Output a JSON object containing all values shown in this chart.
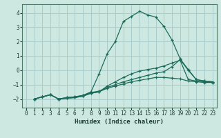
{
  "title": "",
  "xlabel": "Humidex (Indice chaleur)",
  "background_color": "#cce8e0",
  "grid_color": "#aacccc",
  "line_color": "#1a6b5a",
  "xlim": [
    -0.5,
    23.5
  ],
  "ylim": [
    -2.6,
    4.6
  ],
  "xticks": [
    0,
    1,
    2,
    3,
    4,
    5,
    6,
    7,
    8,
    9,
    10,
    11,
    12,
    13,
    14,
    15,
    16,
    17,
    18,
    19,
    20,
    21,
    22,
    23
  ],
  "yticks": [
    -2,
    -1,
    0,
    1,
    2,
    3,
    4
  ],
  "lines": [
    {
      "x": [
        1,
        2,
        3,
        4,
        5,
        6,
        7,
        8,
        9,
        10,
        11,
        12,
        13,
        14,
        15,
        16,
        17,
        18,
        19,
        20,
        21,
        22,
        23
      ],
      "y": [
        -2.0,
        -1.85,
        -1.7,
        -2.0,
        -1.9,
        -1.85,
        -1.75,
        -1.5,
        -0.25,
        1.15,
        2.0,
        3.4,
        3.75,
        4.1,
        3.85,
        3.7,
        3.05,
        2.1,
        0.8,
        0.05,
        -0.65,
        -0.75,
        -0.8
      ]
    },
    {
      "x": [
        1,
        2,
        3,
        4,
        5,
        6,
        7,
        8,
        9,
        10,
        11,
        12,
        13,
        14,
        15,
        16,
        17,
        18,
        19,
        20,
        21,
        22,
        23
      ],
      "y": [
        -2.0,
        -1.85,
        -1.7,
        -2.0,
        -1.9,
        -1.85,
        -1.75,
        -1.55,
        -1.45,
        -1.2,
        -1.0,
        -0.8,
        -0.65,
        -0.5,
        -0.35,
        -0.2,
        -0.1,
        0.25,
        0.75,
        0.0,
        -0.65,
        -0.75,
        -0.8
      ]
    },
    {
      "x": [
        1,
        2,
        3,
        4,
        5,
        6,
        7,
        8,
        9,
        10,
        11,
        12,
        13,
        14,
        15,
        16,
        17,
        18,
        19,
        20,
        21,
        22,
        23
      ],
      "y": [
        -2.0,
        -1.85,
        -1.7,
        -2.0,
        -1.95,
        -1.9,
        -1.8,
        -1.6,
        -1.5,
        -1.25,
        -1.1,
        -0.95,
        -0.8,
        -0.7,
        -0.6,
        -0.5,
        -0.5,
        -0.55,
        -0.6,
        -0.75,
        -0.8,
        -0.85,
        -0.85
      ]
    },
    {
      "x": [
        1,
        2,
        3,
        4,
        5,
        6,
        7,
        8,
        9,
        10,
        11,
        12,
        13,
        14,
        15,
        16,
        17,
        18,
        19,
        20,
        21,
        22,
        23
      ],
      "y": [
        -2.0,
        -1.85,
        -1.7,
        -2.0,
        -1.95,
        -1.9,
        -1.8,
        -1.6,
        -1.5,
        -1.1,
        -0.8,
        -0.5,
        -0.25,
        -0.05,
        0.05,
        0.15,
        0.3,
        0.5,
        0.7,
        -0.65,
        -0.75,
        -0.8,
        -0.85
      ]
    }
  ]
}
